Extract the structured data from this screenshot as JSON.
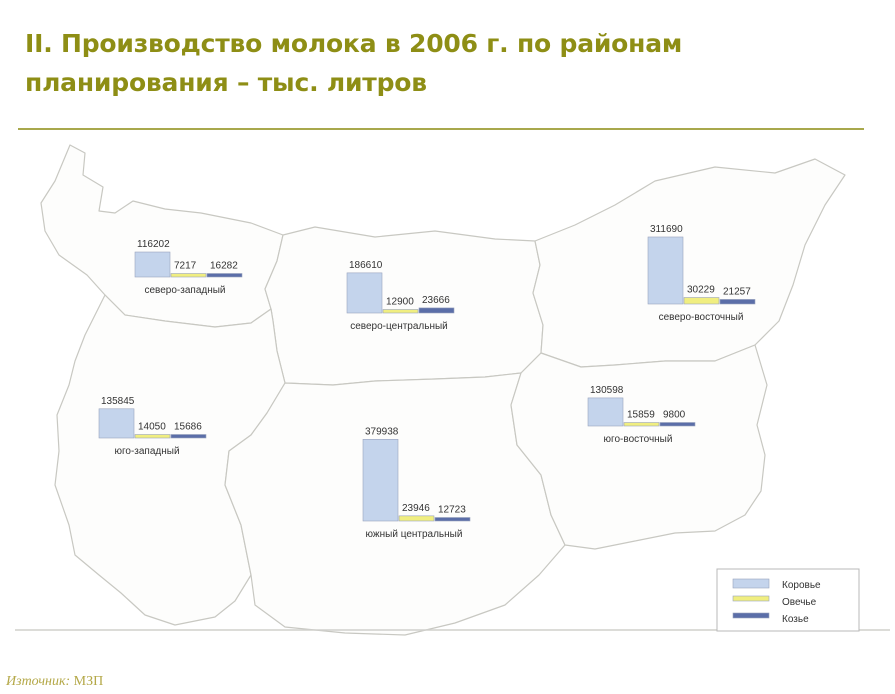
{
  "title_line1": "II. Производство молока в 2006 г. по районам",
  "title_line2": "планирования – тыс. литров",
  "source": {
    "label": "Източник:",
    "value": "МЗП"
  },
  "colors": {
    "cow": "#c4d4ec",
    "sheep": "#f0ee80",
    "goat": "#5b6ea8",
    "title": "#8e8e15",
    "rule": "#a8a84c"
  },
  "legend": [
    {
      "key": "cow",
      "label": "Коровье"
    },
    {
      "key": "sheep",
      "label": "Овечье"
    },
    {
      "key": "goat",
      "label": "Козье"
    }
  ],
  "chart_data": {
    "type": "bar",
    "categories": [
      "Коровье",
      "Овечье",
      "Козье"
    ],
    "regions": [
      {
        "name": "северо-западный",
        "values": [
          116202,
          7217,
          16282
        ]
      },
      {
        "name": "северо-центральный",
        "values": [
          186610,
          12900,
          23666
        ]
      },
      {
        "name": "северо-восточный",
        "values": [
          311690,
          30229,
          21257
        ]
      },
      {
        "name": "юго-западный",
        "values": [
          135845,
          14050,
          15686
        ]
      },
      {
        "name": "южный центральный",
        "values": [
          379938,
          23946,
          12723
        ]
      },
      {
        "name": "юго-восточный",
        "values": [
          130598,
          15859,
          9800
        ]
      }
    ]
  }
}
